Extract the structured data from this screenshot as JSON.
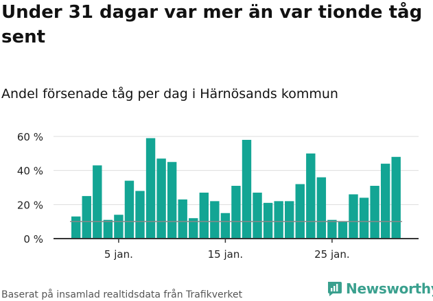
{
  "title": "Under 31 dagar var mer än var tionde tåg sent",
  "subtitle": "Andel försenade tåg per dag i Härnösands kommun",
  "footer": "Baserat på insamlad realtidsdata från Trafikverket",
  "brand": {
    "name": "Newsworthy",
    "icon": "newsworthy-logo-icon",
    "color": "#3aa08e"
  },
  "colors": {
    "bar": "#13a594",
    "reference_line": "#888888",
    "grid": "#dddddd",
    "axis": "#333333"
  },
  "chart_data": {
    "type": "bar",
    "days": [
      1,
      2,
      3,
      4,
      5,
      6,
      7,
      8,
      9,
      10,
      11,
      12,
      13,
      14,
      15,
      16,
      17,
      18,
      19,
      20,
      21,
      22,
      23,
      24,
      25,
      26,
      27,
      28,
      29,
      30,
      31
    ],
    "values": [
      13,
      25,
      43,
      11,
      14,
      34,
      28,
      59,
      47,
      45,
      23,
      12,
      27,
      22,
      15,
      31,
      58,
      27,
      21,
      22,
      22,
      32,
      50,
      36,
      11,
      10,
      26,
      24,
      31,
      44,
      48
    ],
    "reference_line": 10,
    "ylim": [
      0,
      60
    ],
    "yticks": [
      0,
      20,
      40,
      60
    ],
    "ytick_labels": [
      "0 %",
      "20 %",
      "40 %",
      "60 %"
    ],
    "xticks": [
      5,
      15,
      25
    ],
    "xtick_labels": [
      "5 jan.",
      "15 jan.",
      "25 jan."
    ],
    "xlabel": "",
    "ylabel": "",
    "grid": true
  }
}
